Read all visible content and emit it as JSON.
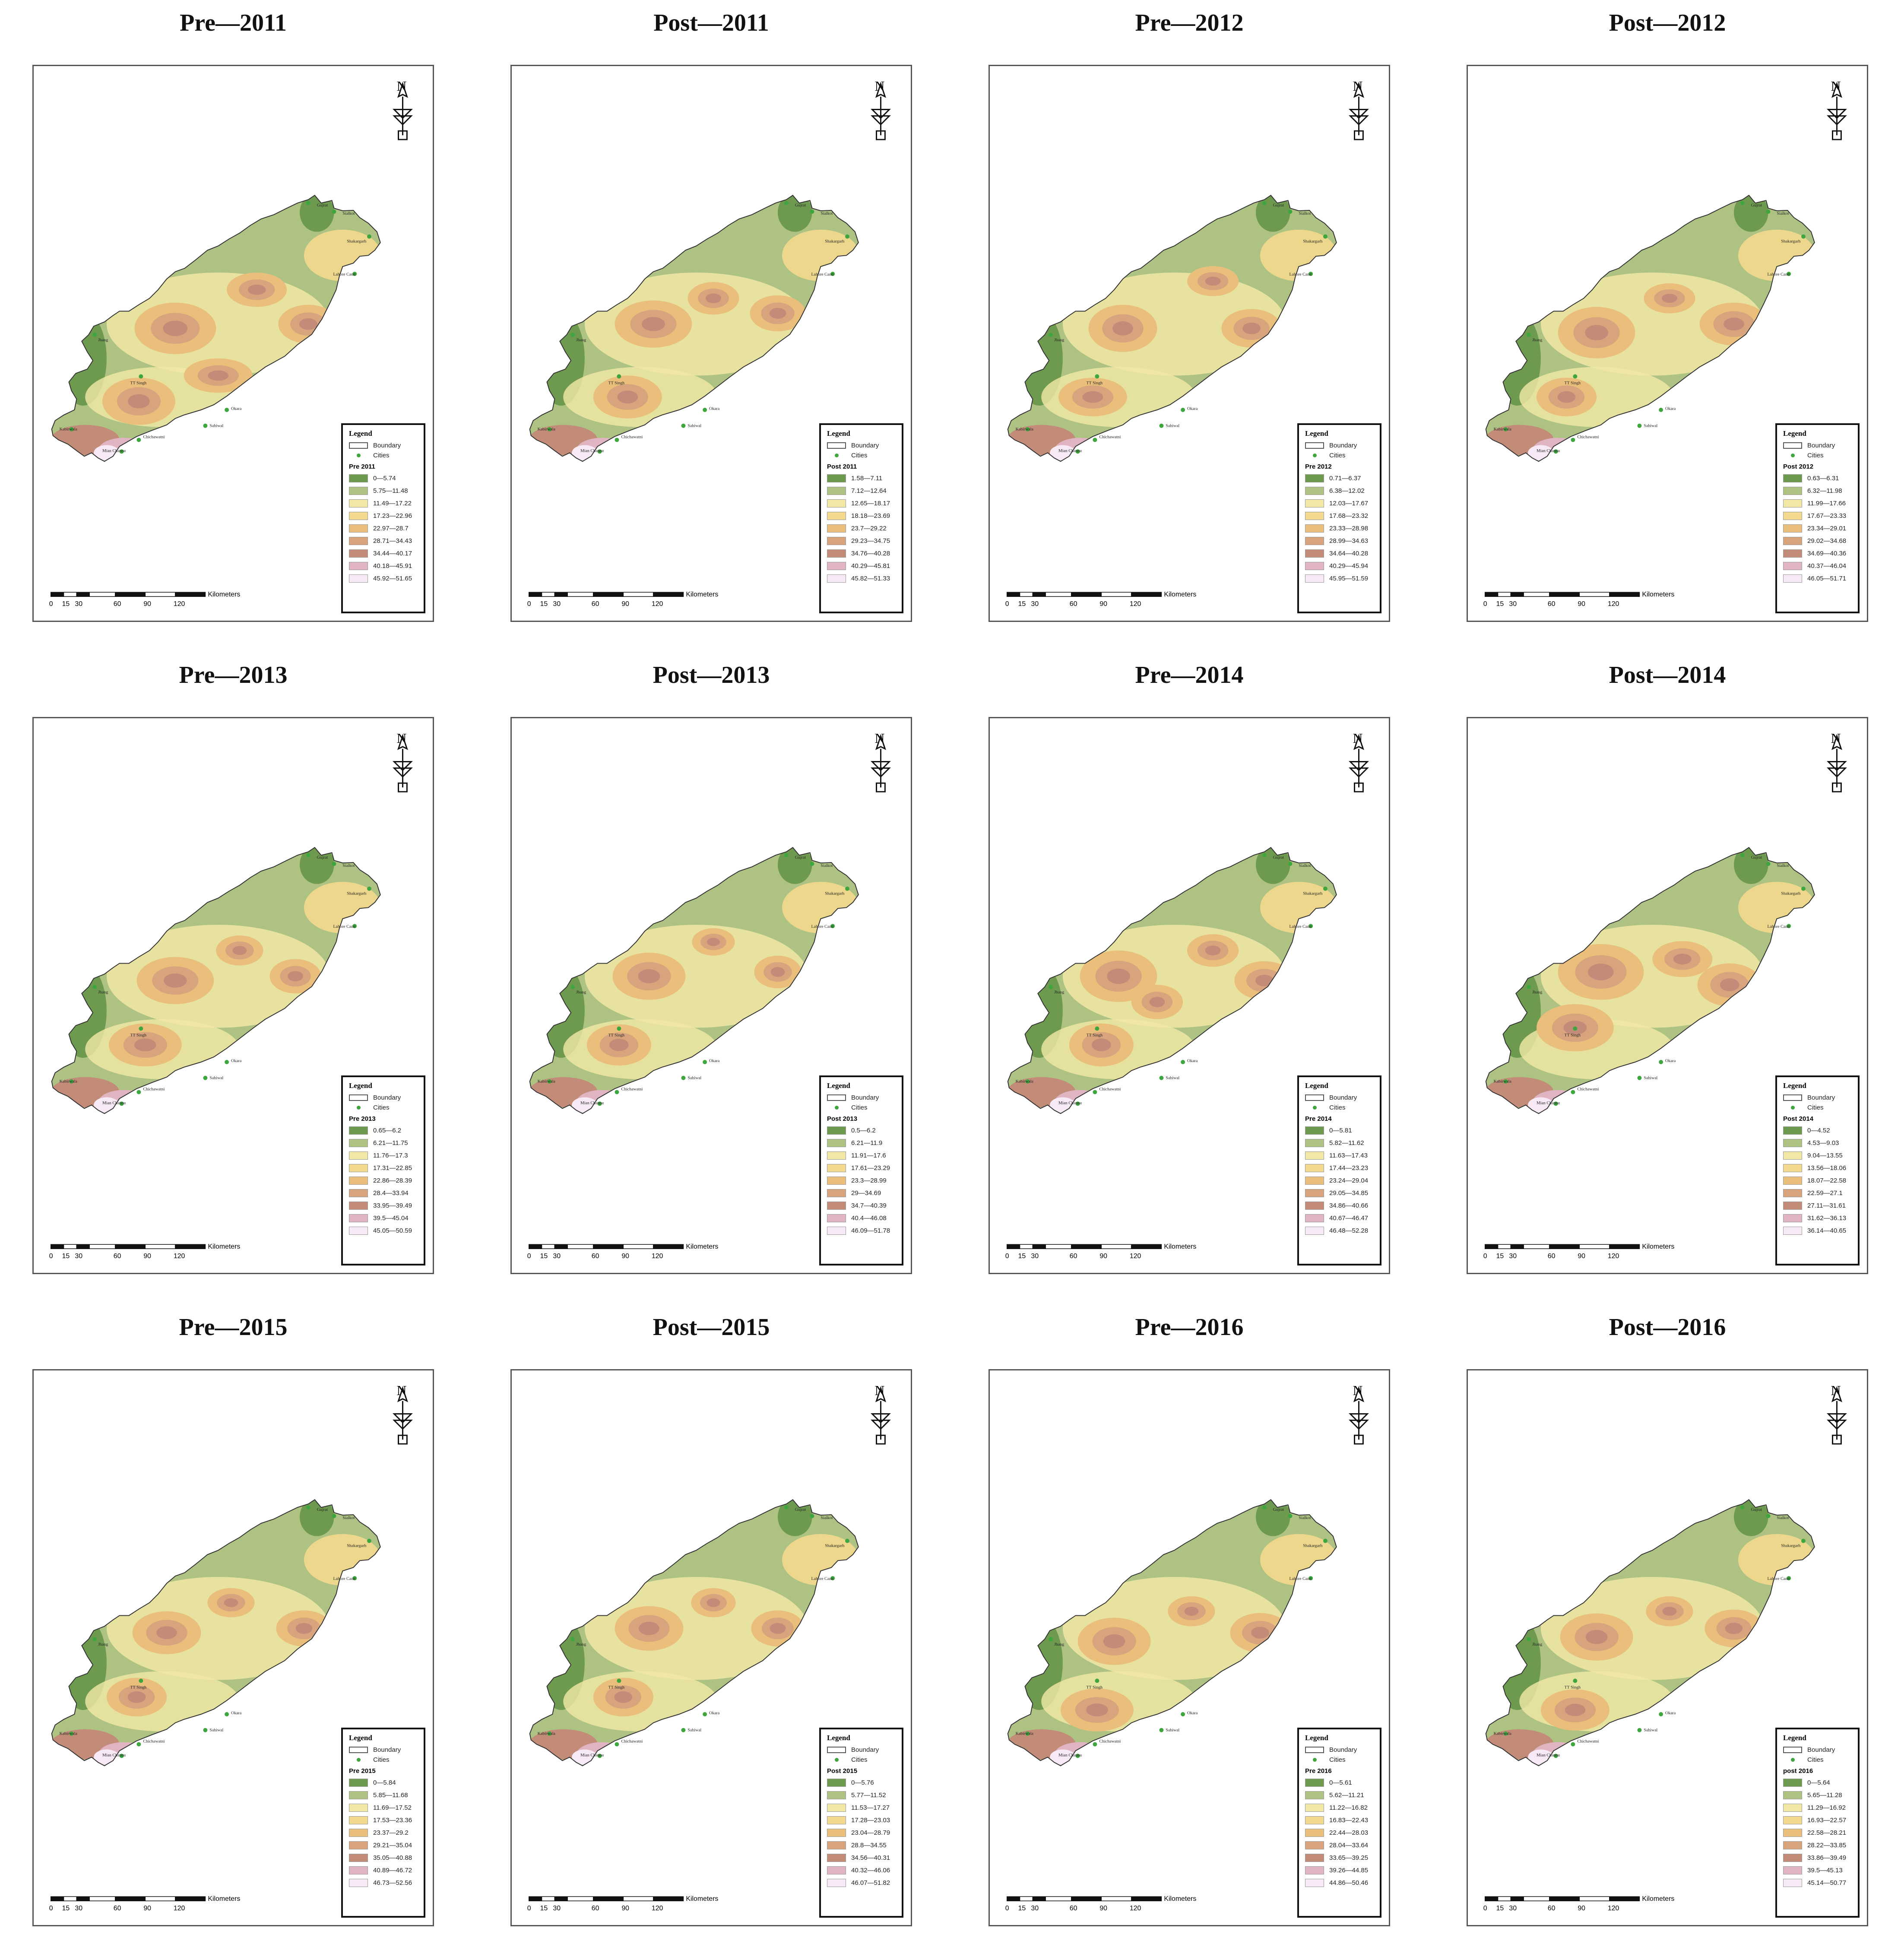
{
  "labels": {
    "legend": "Legend",
    "boundary": "Boundary",
    "cities": "Cities",
    "kilometers": "Kilometers",
    "north": "N",
    "scale_ticks": [
      "0",
      "15",
      "30",
      "60",
      "90",
      "120"
    ]
  },
  "cities": [
    "Gujrat",
    "Sialkot",
    "Shakargarh",
    "Jhang",
    "Lahore Cantt",
    "TT Singh",
    "Okara",
    "Kabirwala",
    "Sahiwal",
    "Chichawatni",
    "Mian Channu"
  ],
  "colors": [
    "#6e9a50",
    "#aec383",
    "#f2e8a6",
    "#f3d98d",
    "#e9bf7b",
    "#d7a47d",
    "#c38c78",
    "#e0b4c1",
    "#f7e9f5"
  ],
  "panels": [
    {
      "title": "Pre—2011",
      "legend_title": "Pre 2011",
      "ranges": [
        "0—5.74",
        "5.75—11.48",
        "11.49—17.22",
        "17.23—22.96",
        "22.97—28.7",
        "28.71—34.43",
        "34.44—40.17",
        "40.18—45.91",
        "45.92—51.65"
      ]
    },
    {
      "title": "Post—2011",
      "legend_title": "Post 2011",
      "ranges": [
        "1.58—7.11",
        "7.12—12.64",
        "12.65—18.17",
        "18.18—23.69",
        "23.7—29.22",
        "29.23—34.75",
        "34.76—40.28",
        "40.29—45.81",
        "45.82—51.33"
      ]
    },
    {
      "title": "Pre—2012",
      "legend_title": "Pre 2012",
      "ranges": [
        "0.71—6.37",
        "6.38—12.02",
        "12.03—17.67",
        "17.68—23.32",
        "23.33—28.98",
        "28.99—34.63",
        "34.64—40.28",
        "40.29—45.94",
        "45.95—51.59"
      ]
    },
    {
      "title": "Post—2012",
      "legend_title": "Post 2012",
      "ranges": [
        "0.63—6.31",
        "6.32—11.98",
        "11.99—17.66",
        "17.67—23.33",
        "23.34—29.01",
        "29.02—34.68",
        "34.69—40.36",
        "40.37—46.04",
        "46.05—51.71"
      ]
    },
    {
      "title": "Pre—2013",
      "legend_title": "Pre 2013",
      "ranges": [
        "0.65—6.2",
        "6.21—11.75",
        "11.76—17.3",
        "17.31—22.85",
        "22.86—28.39",
        "28.4—33.94",
        "33.95—39.49",
        "39.5—45.04",
        "45.05—50.59"
      ]
    },
    {
      "title": "Post—2013",
      "legend_title": "Post 2013",
      "ranges": [
        "0.5—6.2",
        "6.21—11.9",
        "11.91—17.6",
        "17.61—23.29",
        "23.3—28.99",
        "29—34.69",
        "34.7—40.39",
        "40.4—46.08",
        "46.09—51.78"
      ]
    },
    {
      "title": "Pre—2014",
      "legend_title": "Pre 2014",
      "ranges": [
        "0—5.81",
        "5.82—11.62",
        "11.63—17.43",
        "17.44—23.23",
        "23.24—29.04",
        "29.05—34.85",
        "34.86—40.66",
        "40.67—46.47",
        "46.48—52.28"
      ]
    },
    {
      "title": "Post—2014",
      "legend_title": "Post 2014",
      "ranges": [
        "0—4.52",
        "4.53—9.03",
        "9.04—13.55",
        "13.56—18.06",
        "18.07—22.58",
        "22.59—27.1",
        "27.11—31.61",
        "31.62—36.13",
        "36.14—40.65"
      ]
    },
    {
      "title": "Pre—2015",
      "legend_title": "Pre 2015",
      "ranges": [
        "0—5.84",
        "5.85—11.68",
        "11.69—17.52",
        "17.53—23.36",
        "23.37—29.2",
        "29.21—35.04",
        "35.05—40.88",
        "40.89—46.72",
        "46.73—52.56"
      ]
    },
    {
      "title": "Post—2015",
      "legend_title": "Post 2015",
      "ranges": [
        "0—5.76",
        "5.77—11.52",
        "11.53—17.27",
        "17.28—23.03",
        "23.04—28.79",
        "28.8—34.55",
        "34.56—40.31",
        "40.32—46.06",
        "46.07—51.82"
      ]
    },
    {
      "title": "Pre—2016",
      "legend_title": "Pre 2016",
      "ranges": [
        "0—5.61",
        "5.62—11.21",
        "11.22—16.82",
        "16.83—22.43",
        "22.44—28.03",
        "28.04—33.64",
        "33.65—39.25",
        "39.26—44.85",
        "44.86—50.46"
      ]
    },
    {
      "title": "Post—2016",
      "legend_title": "post 2016",
      "ranges": [
        "0—5.64",
        "5.65—11.28",
        "11.29—16.92",
        "16.93—22.57",
        "22.58—28.21",
        "28.22—33.85",
        "33.86—39.49",
        "39.5—45.13",
        "45.14—50.77"
      ]
    }
  ]
}
